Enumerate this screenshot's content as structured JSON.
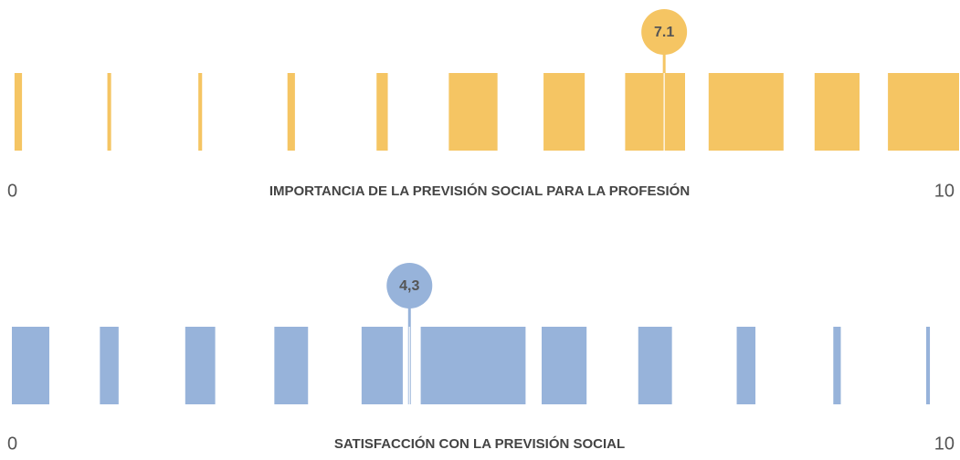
{
  "chart_data": [
    {
      "type": "strip",
      "title": "IMPORTANCIA DE LA PREVISIÓN SOCIAL PARA LA PROFESIÓN",
      "categories": [
        0,
        1,
        2,
        3,
        4,
        5,
        6,
        7,
        8,
        9,
        10
      ],
      "values": [
        2,
        1,
        1,
        2,
        3,
        13,
        11,
        16,
        20,
        12,
        19
      ],
      "color": "#f5c563",
      "xlim": [
        0,
        10
      ],
      "xticks": [
        0,
        10
      ],
      "marker": 7.1
    },
    {
      "type": "strip",
      "title": "SATISFACCIÓN CON LA PREVISIÓN SOCIAL",
      "categories": [
        0,
        1,
        2,
        3,
        4,
        5,
        6,
        7,
        8,
        9,
        10
      ],
      "values": [
        10,
        5,
        8,
        9,
        11,
        28,
        12,
        9,
        5,
        2,
        1
      ],
      "color": "#97b3da",
      "xlim": [
        0,
        10
      ],
      "xticks": [
        0,
        10
      ],
      "marker": {
        "value": 4.3,
        "label": "4,3"
      }
    }
  ]
}
